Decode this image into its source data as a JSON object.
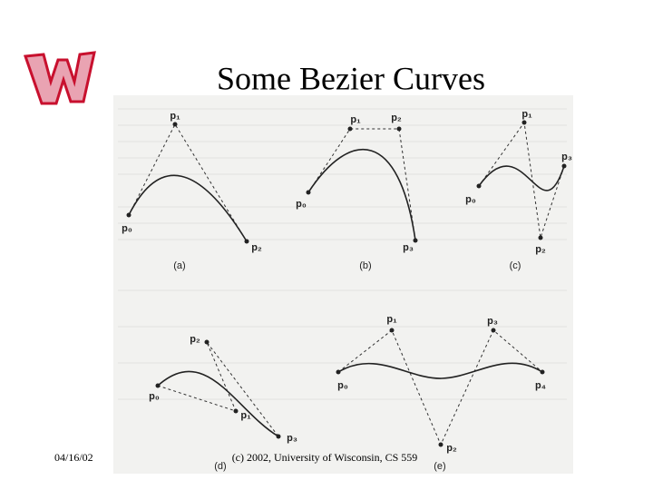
{
  "header": {
    "title": "Some Bezier Curves"
  },
  "figure": {
    "panels": [
      {
        "caption": "(a)",
        "labels": [
          "p₀",
          "p₁",
          "p₂"
        ]
      },
      {
        "caption": "(b)",
        "labels": [
          "p₀",
          "p₁",
          "p₂",
          "p₃"
        ]
      },
      {
        "caption": "(c)",
        "labels": [
          "p₀",
          "p₁",
          "p₂",
          "p₃"
        ]
      },
      {
        "caption": "(d)",
        "labels": [
          "p₀",
          "p₁",
          "p₂",
          "p₃"
        ]
      },
      {
        "caption": "(e)",
        "labels": [
          "p₀",
          "p₁",
          "p₂",
          "p₃",
          "p₄"
        ]
      }
    ]
  },
  "footer": {
    "date": "04/16/02",
    "copyright": "(c) 2002, University of Wisconsin, CS 559"
  }
}
